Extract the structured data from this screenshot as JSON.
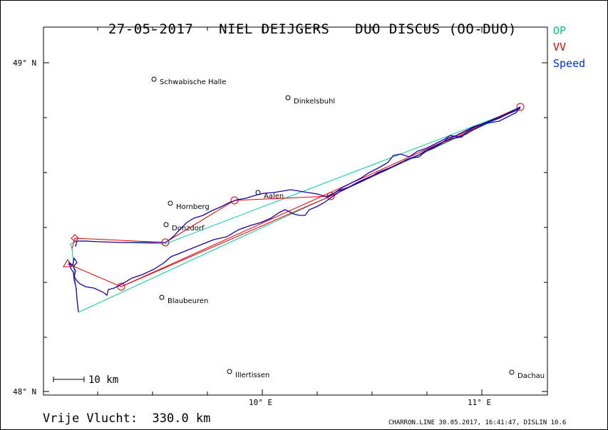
{
  "header": {
    "date": "27-05-2017",
    "pilot": "NIEL DEIJGERS",
    "aircraft": "DUO DISCUS (OO-DUO)"
  },
  "legend": [
    {
      "label": "OP",
      "color": "#00c878"
    },
    {
      "label": "VV",
      "color": "#e00000"
    },
    {
      "label": "Speed",
      "color": "#0030e0"
    }
  ],
  "axes": {
    "lat_labels": [
      "49° N",
      "48° N"
    ],
    "lon_labels": [
      "10° E",
      "11° E"
    ]
  },
  "scale_bar": {
    "label": "10 km"
  },
  "towns": [
    {
      "name": "Schwabische Halle"
    },
    {
      "name": "Dinkelsbuhl"
    },
    {
      "name": "Aalen"
    },
    {
      "name": "Hornberg"
    },
    {
      "name": "Donzdorf"
    },
    {
      "name": "Blaubeuren"
    },
    {
      "name": "Illertissen"
    },
    {
      "name": "Dachau"
    }
  ],
  "footer": {
    "distance": "Vrije Vlucht:  330.0 km",
    "credits": "CHARRON.LINE 30.05.2017, 16:41:47, DISLIN 10.6"
  },
  "colors": {
    "op_line": "#00c8a0",
    "vv_line": "#e00000",
    "track": "#2000a0"
  }
}
